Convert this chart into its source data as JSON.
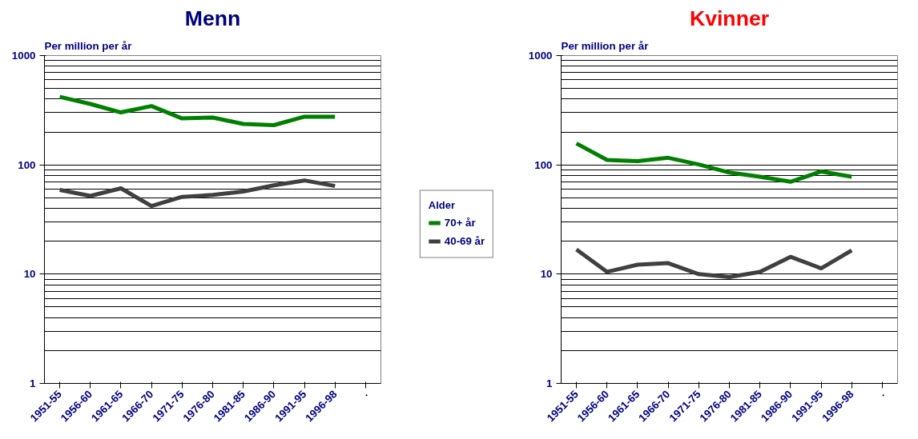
{
  "chart_data": [
    {
      "type": "line",
      "title": "Menn",
      "ylabel": "Per million per år",
      "legend_title": "Alder",
      "legend": "right",
      "log": "y",
      "grid": "y",
      "categories": [
        "1951-55",
        "1956-60",
        "1961-65",
        "1966-70",
        "1971-75",
        "1976-80",
        "1981-85",
        "1986-90",
        "1991-95",
        "1996-98",
        "."
      ],
      "ylim": [
        1,
        1000
      ],
      "yticks": [
        1,
        10,
        100,
        1000
      ],
      "series": [
        {
          "name": "70+ år",
          "color": "#008000",
          "values": [
            419,
            361,
            302,
            345,
            266,
            271,
            237,
            231,
            276,
            276,
            null
          ]
        },
        {
          "name": "40-69 år",
          "color": "#404040",
          "values": [
            59,
            52,
            61,
            42,
            51,
            53,
            57,
            65,
            72,
            64,
            null
          ]
        }
      ]
    },
    {
      "type": "line",
      "title": "Kvinner",
      "ylabel": "Per million per år",
      "legend": false,
      "log": "y",
      "grid": "y",
      "categories": [
        "1951-55",
        "1956-60",
        "1961-65",
        "1966-70",
        "1971-75",
        "1976-80",
        "1981-85",
        "1986-90",
        "1991-95",
        "1996-98",
        "."
      ],
      "ylim": [
        1,
        1000
      ],
      "yticks": [
        1,
        10,
        100,
        1000
      ],
      "series": [
        {
          "color": "#008000",
          "values": [
            157,
            111,
            108,
            116,
            101,
            85,
            78,
            70,
            87,
            78,
            null
          ]
        },
        {
          "color": "#404040",
          "values": [
            16.8,
            10.5,
            12.2,
            12.6,
            10,
            9.4,
            10.5,
            14.4,
            11.3,
            16.5,
            null
          ]
        }
      ]
    }
  ]
}
